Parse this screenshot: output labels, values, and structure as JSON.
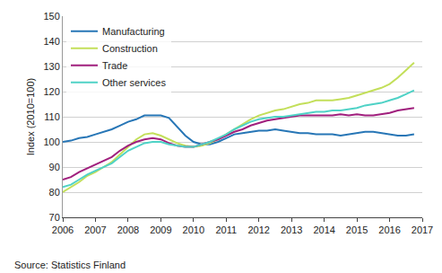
{
  "chart_data": {
    "type": "line",
    "y_label": "Index (2010=100)",
    "annotations": [
      "Source: Statistics Finland"
    ],
    "x": [
      2006,
      2006.25,
      2006.5,
      2006.75,
      2007,
      2007.25,
      2007.5,
      2007.75,
      2008,
      2008.25,
      2008.5,
      2008.75,
      2009,
      2009.25,
      2009.5,
      2009.75,
      2010,
      2010.25,
      2010.5,
      2010.75,
      2011,
      2011.25,
      2011.5,
      2011.75,
      2012,
      2012.25,
      2012.5,
      2012.75,
      2013,
      2013.25,
      2013.5,
      2013.75,
      2014,
      2014.25,
      2014.5,
      2014.75,
      2015,
      2015.25,
      2015.5,
      2015.75,
      2016,
      2016.25,
      2016.5,
      2016.75
    ],
    "series": [
      {
        "name": "Manufacturing",
        "color": "#2776b6",
        "values": [
          100,
          100.5,
          101.5,
          102,
          103,
          104,
          105,
          106.5,
          108,
          109,
          110.5,
          110.5,
          110.5,
          109.5,
          106,
          102.5,
          100,
          99,
          99,
          100,
          101.5,
          103,
          103.5,
          104,
          104.5,
          104.5,
          105,
          104.5,
          104,
          103.5,
          103.5,
          103,
          103,
          103,
          102.5,
          103,
          103.5,
          104,
          104,
          103.5,
          103,
          102.5,
          102.5,
          103
        ]
      },
      {
        "name": "Construction",
        "color": "#c3df5a",
        "values": [
          80,
          82,
          84,
          86.5,
          88,
          90,
          92,
          95,
          98,
          101,
          103,
          103.5,
          102.5,
          101,
          99.5,
          98.5,
          98,
          98.5,
          99.5,
          101,
          103,
          105,
          107,
          109,
          110.5,
          111.5,
          112.5,
          113,
          114,
          115,
          115.5,
          116.5,
          116.5,
          116.5,
          117,
          117.5,
          118.5,
          119.5,
          120.5,
          121.5,
          123,
          125.5,
          128.5,
          131.5
        ]
      },
      {
        "name": "Trade",
        "color": "#a01f7d",
        "values": [
          85,
          86,
          88,
          89.5,
          91,
          92.5,
          94,
          96.5,
          98.5,
          100,
          101,
          101.5,
          101,
          99.5,
          98.5,
          98,
          98,
          99,
          100,
          101,
          102.5,
          104,
          105,
          106.5,
          107.5,
          108.5,
          109,
          109.5,
          110,
          110.5,
          110.5,
          110.5,
          110.5,
          110.5,
          111,
          110.5,
          111,
          110.5,
          110.5,
          111,
          111.5,
          112.5,
          113,
          113.5
        ]
      },
      {
        "name": "Other services",
        "color": "#4fd2c6",
        "values": [
          82,
          83,
          85,
          87,
          88.5,
          90,
          91.5,
          94,
          96.5,
          98,
          99.5,
          100,
          100,
          99,
          98.5,
          98,
          98,
          99,
          100,
          101.5,
          103,
          105,
          106.5,
          108,
          109,
          109.5,
          110,
          110,
          110.5,
          111,
          111.5,
          112,
          112,
          112.5,
          112.5,
          113,
          113.5,
          114.5,
          115,
          115.5,
          116.5,
          117.5,
          119,
          120.5
        ]
      }
    ],
    "xlim": [
      2006,
      2017
    ],
    "xticks": [
      2006,
      2007,
      2008,
      2009,
      2010,
      2011,
      2012,
      2013,
      2014,
      2015,
      2016,
      2017
    ],
    "ylim": [
      70,
      150
    ],
    "yticks": [
      70,
      80,
      90,
      100,
      110,
      120,
      130,
      140,
      150
    ],
    "grid": true,
    "legend": "top-left"
  }
}
